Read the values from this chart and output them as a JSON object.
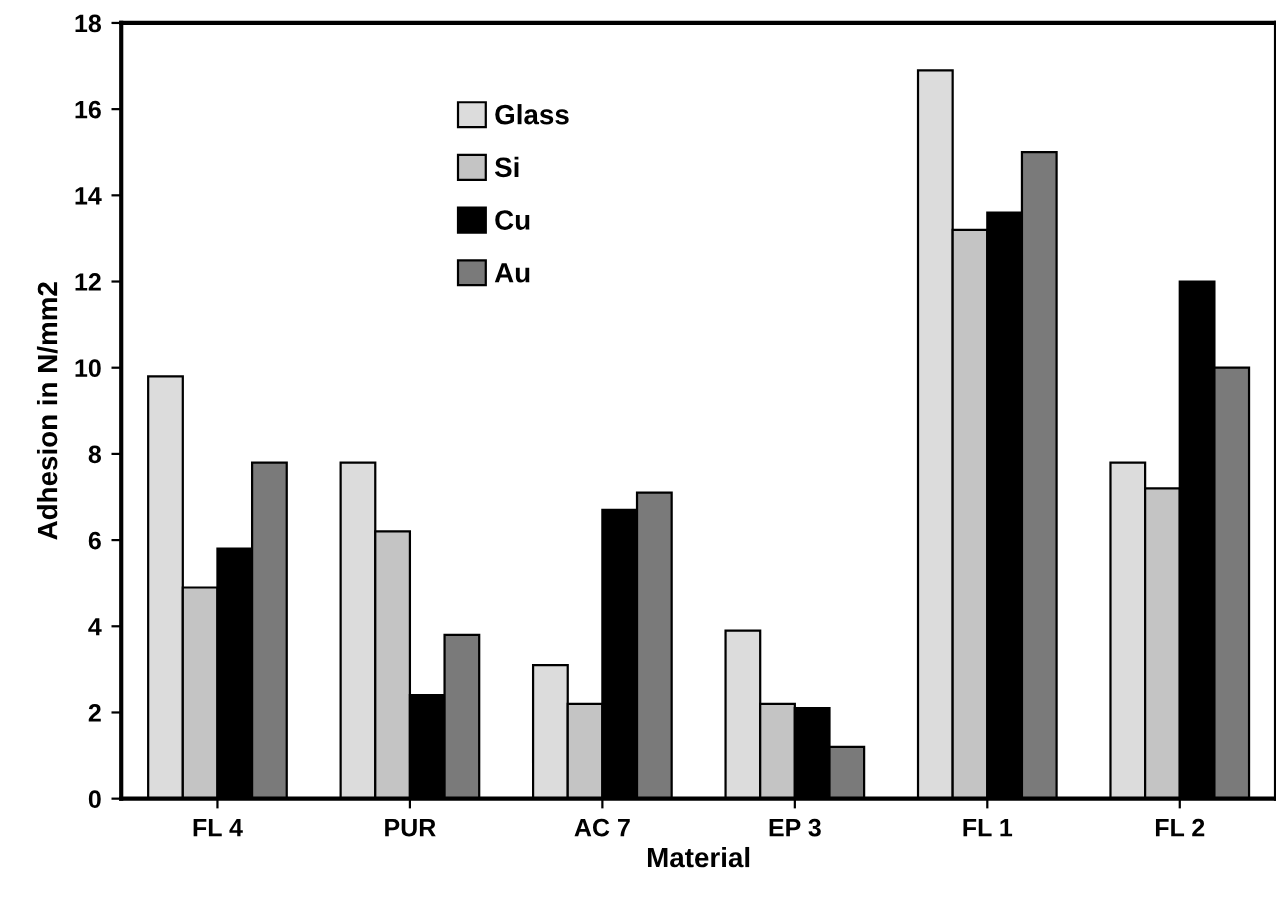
{
  "chart_data": {
    "type": "bar",
    "xlabel": "Material",
    "ylabel": "Adhesion in N/mm2",
    "categories": [
      "FL 4",
      "PUR",
      "AC 7",
      "EP 3",
      "FL 1",
      "FL 2"
    ],
    "series": [
      {
        "name": "Glass",
        "color": "#dcdcdc",
        "values": [
          9.8,
          7.8,
          3.1,
          3.9,
          16.9,
          7.8
        ]
      },
      {
        "name": "Si",
        "color": "#c4c4c4",
        "values": [
          4.9,
          6.2,
          2.2,
          2.2,
          13.2,
          7.2
        ]
      },
      {
        "name": "Cu",
        "color": "#000000",
        "values": [
          5.8,
          2.4,
          6.7,
          2.1,
          13.6,
          12.0
        ]
      },
      {
        "name": "Au",
        "color": "#7a7a7a",
        "values": [
          7.8,
          3.8,
          7.1,
          1.2,
          15.0,
          10.0
        ]
      }
    ],
    "ylim": [
      0,
      18
    ],
    "yticks": [
      0,
      2,
      4,
      6,
      8,
      10,
      12,
      14,
      16,
      18
    ],
    "grid": false,
    "legend": "top"
  }
}
